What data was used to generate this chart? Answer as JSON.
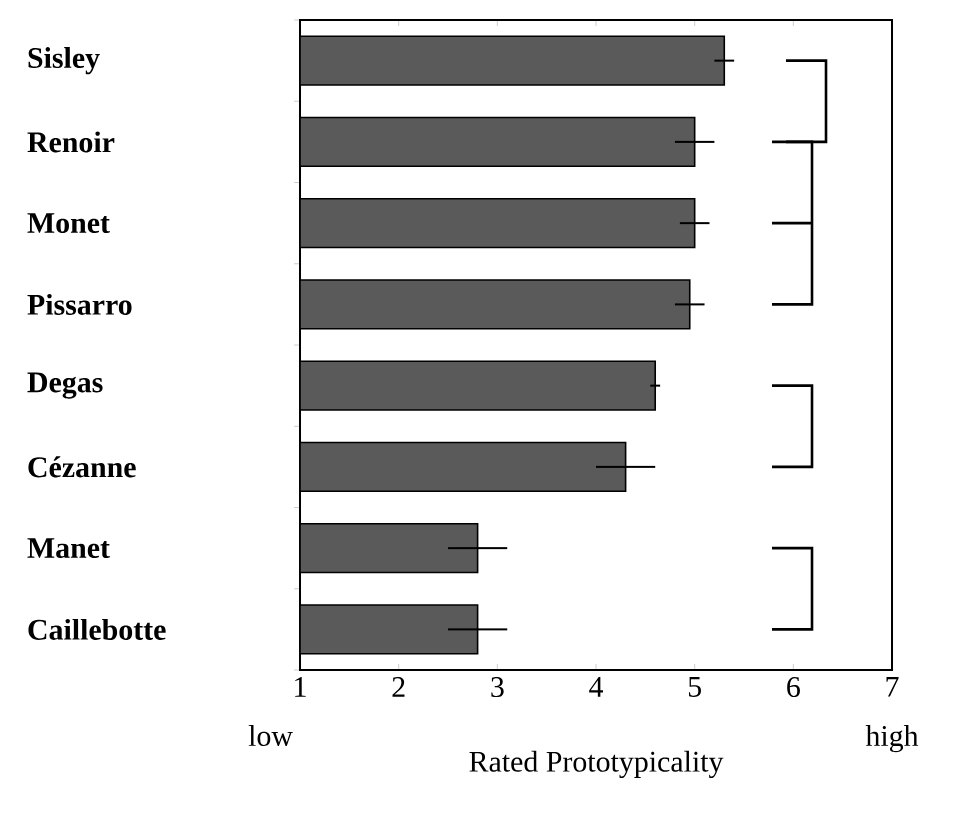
{
  "chart_data": {
    "type": "bar",
    "orientation": "horizontal",
    "xlabel": "Rated Prototypicality",
    "categories": [
      "Sisley",
      "Renoir",
      "Monet",
      "Pissarro",
      "Degas",
      "Cézanne",
      "Manet",
      "Caillebotte"
    ],
    "values": [
      5.3,
      5.0,
      5.0,
      4.95,
      4.6,
      4.3,
      2.8,
      2.8
    ],
    "errors": [
      0.1,
      0.2,
      0.15,
      0.15,
      0.05,
      0.3,
      0.3,
      0.3
    ],
    "color": "#5a5a5a",
    "xlim": [
      1,
      7
    ],
    "xticks": [
      1,
      2,
      3,
      4,
      5,
      6,
      7
    ],
    "annotations": [
      "low",
      "high"
    ]
  }
}
